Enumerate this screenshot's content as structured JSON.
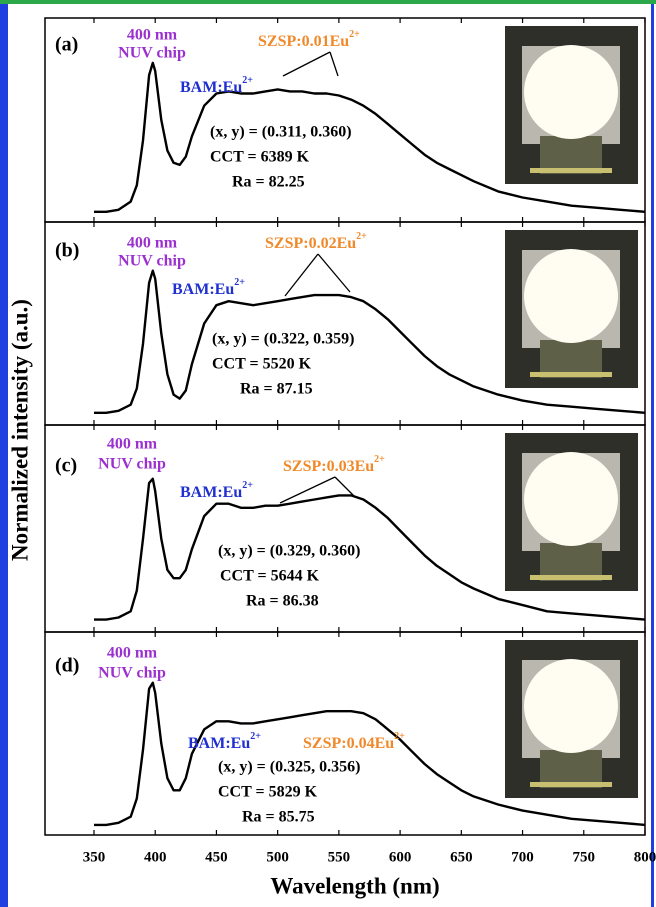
{
  "figure": {
    "ylabel": "Normalized intensity (a.u.)"
  },
  "chart_data": [
    {
      "type": "line",
      "panel_label": "(a)",
      "chip_label": [
        "400 nm",
        "NUV chip"
      ],
      "bam": {
        "text": "BAM:Eu",
        "sup": "2+"
      },
      "szsp": {
        "text": "SZSP:0.01Eu",
        "sup": "2+"
      },
      "stats": [
        "(x, y) = (0.311, 0.360)",
        "CCT = 6389 K",
        "Ra = 82.25"
      ],
      "x": [
        350,
        360,
        370,
        380,
        385,
        390,
        395,
        398,
        400,
        405,
        410,
        415,
        420,
        425,
        430,
        440,
        450,
        460,
        470,
        480,
        490,
        500,
        510,
        520,
        530,
        540,
        550,
        560,
        570,
        580,
        590,
        600,
        610,
        620,
        630,
        640,
        650,
        660,
        680,
        700,
        720,
        740,
        760,
        780,
        800
      ],
      "series": [
        {
          "color": "#000000",
          "values": [
            0.05,
            0.05,
            0.06,
            0.1,
            0.18,
            0.4,
            0.72,
            0.78,
            0.74,
            0.5,
            0.35,
            0.29,
            0.28,
            0.32,
            0.42,
            0.57,
            0.63,
            0.64,
            0.63,
            0.63,
            0.64,
            0.65,
            0.64,
            0.64,
            0.63,
            0.63,
            0.62,
            0.6,
            0.57,
            0.53,
            0.48,
            0.43,
            0.38,
            0.33,
            0.29,
            0.26,
            0.23,
            0.2,
            0.15,
            0.12,
            0.1,
            0.08,
            0.07,
            0.06,
            0.05
          ]
        }
      ],
      "xlim": [
        310,
        800
      ],
      "ylim": [
        0,
        1
      ]
    },
    {
      "type": "line",
      "panel_label": "(b)",
      "chip_label": [
        "400 nm",
        "NUV chip"
      ],
      "bam": {
        "text": "BAM:Eu",
        "sup": "2+"
      },
      "szsp": {
        "text": "SZSP:0.02Eu",
        "sup": "2+"
      },
      "stats": [
        "(x, y) = (0.322, 0.359)",
        "CCT = 5520 K",
        "Ra = 87.15"
      ],
      "x": [
        350,
        360,
        370,
        380,
        385,
        390,
        395,
        398,
        400,
        405,
        410,
        415,
        420,
        425,
        430,
        440,
        450,
        460,
        470,
        480,
        490,
        500,
        510,
        520,
        530,
        540,
        550,
        560,
        570,
        580,
        590,
        600,
        610,
        620,
        630,
        640,
        650,
        660,
        680,
        700,
        720,
        740,
        760,
        780,
        800
      ],
      "series": [
        {
          "color": "#000000",
          "values": [
            0.06,
            0.06,
            0.07,
            0.1,
            0.18,
            0.4,
            0.7,
            0.76,
            0.72,
            0.45,
            0.25,
            0.15,
            0.13,
            0.17,
            0.3,
            0.5,
            0.59,
            0.61,
            0.6,
            0.59,
            0.6,
            0.61,
            0.62,
            0.63,
            0.64,
            0.64,
            0.64,
            0.63,
            0.61,
            0.57,
            0.52,
            0.46,
            0.4,
            0.34,
            0.29,
            0.25,
            0.22,
            0.19,
            0.15,
            0.12,
            0.1,
            0.09,
            0.08,
            0.07,
            0.06
          ]
        }
      ],
      "xlim": [
        310,
        800
      ],
      "ylim": [
        0,
        1
      ]
    },
    {
      "type": "line",
      "panel_label": "(c)",
      "chip_label": [
        "400 nm",
        "NUV chip"
      ],
      "bam": {
        "text": "BAM:Eu",
        "sup": "2+"
      },
      "szsp": {
        "text": "SZSP:0.03Eu",
        "sup": "2+"
      },
      "stats": [
        "(x, y) = (0.329, 0.360)",
        "CCT = 5644 K",
        "Ra = 86.38"
      ],
      "x": [
        350,
        360,
        370,
        380,
        385,
        390,
        395,
        398,
        400,
        405,
        410,
        415,
        420,
        425,
        430,
        440,
        450,
        460,
        470,
        480,
        490,
        500,
        510,
        520,
        530,
        540,
        550,
        560,
        570,
        580,
        590,
        600,
        610,
        620,
        630,
        640,
        650,
        660,
        680,
        700,
        720,
        740,
        760,
        780,
        800
      ],
      "series": [
        {
          "color": "#000000",
          "values": [
            0.06,
            0.06,
            0.07,
            0.1,
            0.2,
            0.45,
            0.72,
            0.74,
            0.68,
            0.45,
            0.3,
            0.26,
            0.26,
            0.3,
            0.4,
            0.56,
            0.62,
            0.62,
            0.6,
            0.6,
            0.61,
            0.61,
            0.62,
            0.63,
            0.64,
            0.65,
            0.66,
            0.66,
            0.64,
            0.6,
            0.55,
            0.49,
            0.43,
            0.37,
            0.32,
            0.28,
            0.24,
            0.21,
            0.16,
            0.13,
            0.1,
            0.09,
            0.08,
            0.07,
            0.06
          ]
        }
      ],
      "xlim": [
        310,
        800
      ],
      "ylim": [
        0,
        1
      ]
    },
    {
      "type": "line",
      "panel_label": "(d)",
      "chip_label": [
        "400 nm",
        "NUV chip"
      ],
      "bam": {
        "text": "BAM:Eu",
        "sup": "2+"
      },
      "szsp": {
        "text": "SZSP:0.04Eu",
        "sup": "2+"
      },
      "stats": [
        "(x, y) = (0.325, 0.356)",
        "CCT = 5829 K",
        "Ra = 85.75"
      ],
      "x": [
        350,
        360,
        370,
        380,
        385,
        390,
        395,
        398,
        400,
        405,
        410,
        415,
        420,
        425,
        430,
        440,
        450,
        460,
        470,
        480,
        490,
        500,
        510,
        520,
        530,
        540,
        550,
        560,
        570,
        580,
        590,
        600,
        610,
        620,
        630,
        640,
        650,
        660,
        680,
        700,
        720,
        740,
        760,
        780,
        800
      ],
      "series": [
        {
          "color": "#000000",
          "values": [
            0.05,
            0.05,
            0.06,
            0.09,
            0.18,
            0.42,
            0.72,
            0.75,
            0.7,
            0.45,
            0.28,
            0.22,
            0.22,
            0.28,
            0.4,
            0.52,
            0.56,
            0.56,
            0.55,
            0.55,
            0.56,
            0.57,
            0.58,
            0.59,
            0.6,
            0.61,
            0.61,
            0.61,
            0.6,
            0.57,
            0.52,
            0.47,
            0.41,
            0.35,
            0.3,
            0.26,
            0.22,
            0.19,
            0.15,
            0.12,
            0.1,
            0.08,
            0.07,
            0.06,
            0.05
          ]
        }
      ],
      "xlim": [
        310,
        800
      ],
      "ylim": [
        0,
        1
      ],
      "xticks": [
        350,
        400,
        450,
        500,
        550,
        600,
        650,
        700,
        750,
        800
      ],
      "xlabel": "Wavelength (nm)"
    }
  ]
}
